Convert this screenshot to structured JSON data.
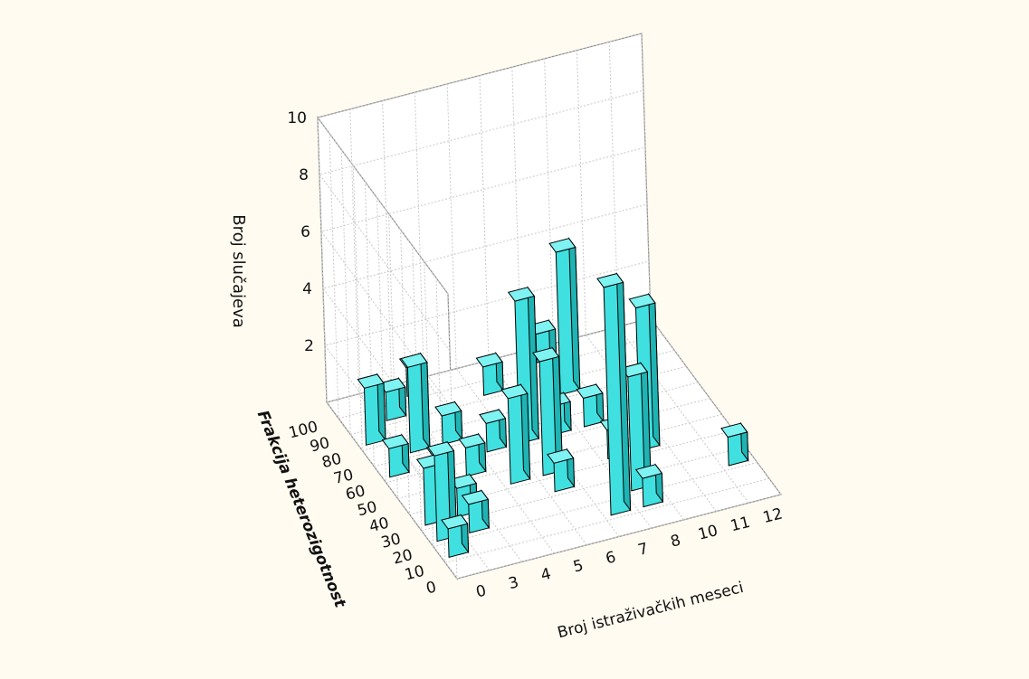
{
  "background_color": "#fffbf0",
  "bar_color": "#40e0e0",
  "chart_data": {
    "type": "bar3d",
    "title": "",
    "xlabel": "Broj istraživačkih meseci",
    "ylabel": "Broj slučajeva",
    "zlabel": "Frakcija heterozigotnost",
    "x_ticks": [
      "0",
      "3",
      "4",
      "5",
      "6",
      "7",
      "8",
      "10",
      "11",
      "12"
    ],
    "z_ticks": [
      "0",
      "10",
      "20",
      "30",
      "40",
      "50",
      "60",
      "70",
      "80",
      "90",
      "100"
    ],
    "y_ticks": [
      "2",
      "4",
      "6",
      "8",
      "10"
    ],
    "ylim": [
      0,
      10
    ],
    "grid": true,
    "bars": [
      {
        "x": "0",
        "z": "80",
        "y": 2
      },
      {
        "x": "0",
        "z": "60",
        "y": 1
      },
      {
        "x": "0",
        "z": "30",
        "y": 2
      },
      {
        "x": "0",
        "z": "20",
        "y": 3
      },
      {
        "x": "0",
        "z": "10",
        "y": 1
      },
      {
        "x": "3",
        "z": "90",
        "y": 1
      },
      {
        "x": "3",
        "z": "70",
        "y": 3
      },
      {
        "x": "3",
        "z": "50",
        "y": 1
      },
      {
        "x": "3",
        "z": "30",
        "y": 1
      },
      {
        "x": "3",
        "z": "20",
        "y": 1
      },
      {
        "x": "4",
        "z": "100",
        "y": 1
      },
      {
        "x": "4",
        "z": "70",
        "y": 1
      },
      {
        "x": "4",
        "z": "50",
        "y": 1
      },
      {
        "x": "5",
        "z": "60",
        "y": 1
      },
      {
        "x": "5",
        "z": "40",
        "y": 3
      },
      {
        "x": "6",
        "z": "90",
        "y": 1
      },
      {
        "x": "6",
        "z": "60",
        "y": 5
      },
      {
        "x": "6",
        "z": "40",
        "y": 4
      },
      {
        "x": "6",
        "z": "30",
        "y": 1
      },
      {
        "x": "7",
        "z": "10",
        "y": 8
      },
      {
        "x": "7",
        "z": "60",
        "y": 1
      },
      {
        "x": "8",
        "z": "100",
        "y": 1
      },
      {
        "x": "8",
        "z": "80",
        "y": 5
      },
      {
        "x": "8",
        "z": "60",
        "y": 1
      },
      {
        "x": "8",
        "z": "40",
        "y": 1
      },
      {
        "x": "8",
        "z": "20",
        "y": 4
      },
      {
        "x": "8",
        "z": "10",
        "y": 1
      },
      {
        "x": "10",
        "z": "40",
        "y": 5
      },
      {
        "x": "12",
        "z": "20",
        "y": 1
      }
    ]
  }
}
